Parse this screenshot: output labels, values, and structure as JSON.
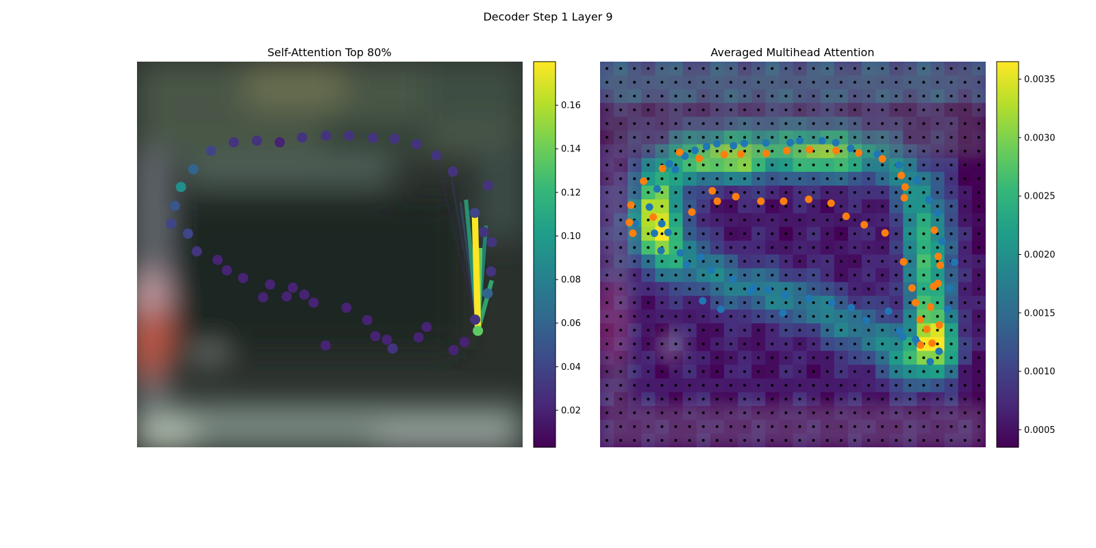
{
  "suptitle": "Decoder Step 1 Layer 9",
  "colors": {
    "viridis": [
      "#440154",
      "#482878",
      "#3e4989",
      "#31688e",
      "#26828e",
      "#1f9e89",
      "#35b779",
      "#6ece58",
      "#b5de2b",
      "#fde725"
    ],
    "query_point": "#5ec962",
    "blue_points": "#1f77b4",
    "orange_points": "#ff7f0e",
    "grid_dots": "#000000"
  },
  "chart_data": [
    {
      "type": "scatter",
      "title": "Self-Attention Top 80%",
      "background": "blurred photo of a car interior",
      "colorbar": {
        "min": 0.003,
        "max": 0.18,
        "ticks": [
          0.02,
          0.04,
          0.06,
          0.08,
          0.1,
          0.12,
          0.14,
          0.16
        ],
        "tick_labels": [
          "0.02",
          "0.04",
          "0.06",
          "0.08",
          "0.10",
          "0.12",
          "0.14",
          "0.16"
        ]
      },
      "image_extent": {
        "x": [
          0,
          1
        ],
        "y": [
          0,
          1
        ]
      },
      "query": {
        "x": 0.884,
        "y": 0.698,
        "value": 0.14
      },
      "points": [
        {
          "x": 0.663,
          "y": 0.744,
          "v": 0.03
        },
        {
          "x": 0.648,
          "y": 0.721,
          "v": 0.02
        },
        {
          "x": 0.618,
          "y": 0.712,
          "v": 0.02
        },
        {
          "x": 0.489,
          "y": 0.736,
          "v": 0.02
        },
        {
          "x": 0.73,
          "y": 0.715,
          "v": 0.02
        },
        {
          "x": 0.751,
          "y": 0.688,
          "v": 0.02
        },
        {
          "x": 0.597,
          "y": 0.67,
          "v": 0.02
        },
        {
          "x": 0.543,
          "y": 0.638,
          "v": 0.02
        },
        {
          "x": 0.388,
          "y": 0.609,
          "v": 0.02
        },
        {
          "x": 0.458,
          "y": 0.625,
          "v": 0.02
        },
        {
          "x": 0.327,
          "y": 0.611,
          "v": 0.02
        },
        {
          "x": 0.434,
          "y": 0.604,
          "v": 0.02
        },
        {
          "x": 0.877,
          "y": 0.669,
          "v": 0.03
        },
        {
          "x": 0.849,
          "y": 0.727,
          "v": 0.02
        },
        {
          "x": 0.821,
          "y": 0.748,
          "v": 0.02
        },
        {
          "x": 0.91,
          "y": 0.321,
          "v": 0.03
        },
        {
          "x": 0.899,
          "y": 0.442,
          "v": 0.03
        },
        {
          "x": 0.876,
          "y": 0.392,
          "v": 0.04
        },
        {
          "x": 0.918,
          "y": 0.544,
          "v": 0.03
        },
        {
          "x": 0.92,
          "y": 0.468,
          "v": 0.03
        },
        {
          "x": 0.909,
          "y": 0.601,
          "v": 0.06
        },
        {
          "x": 0.819,
          "y": 0.285,
          "v": 0.03
        },
        {
          "x": 0.776,
          "y": 0.243,
          "v": 0.03
        },
        {
          "x": 0.725,
          "y": 0.214,
          "v": 0.03
        },
        {
          "x": 0.668,
          "y": 0.2,
          "v": 0.03
        },
        {
          "x": 0.612,
          "y": 0.198,
          "v": 0.03
        },
        {
          "x": 0.55,
          "y": 0.192,
          "v": 0.03
        },
        {
          "x": 0.49,
          "y": 0.192,
          "v": 0.03
        },
        {
          "x": 0.428,
          "y": 0.197,
          "v": 0.03
        },
        {
          "x": 0.37,
          "y": 0.209,
          "v": 0.02
        },
        {
          "x": 0.311,
          "y": 0.205,
          "v": 0.03
        },
        {
          "x": 0.251,
          "y": 0.209,
          "v": 0.03
        },
        {
          "x": 0.192,
          "y": 0.231,
          "v": 0.04
        },
        {
          "x": 0.146,
          "y": 0.279,
          "v": 0.06
        },
        {
          "x": 0.114,
          "y": 0.325,
          "v": 0.09
        },
        {
          "x": 0.098,
          "y": 0.374,
          "v": 0.05
        },
        {
          "x": 0.089,
          "y": 0.42,
          "v": 0.04
        },
        {
          "x": 0.132,
          "y": 0.446,
          "v": 0.04
        },
        {
          "x": 0.155,
          "y": 0.492,
          "v": 0.03
        },
        {
          "x": 0.209,
          "y": 0.514,
          "v": 0.02
        },
        {
          "x": 0.233,
          "y": 0.541,
          "v": 0.02
        },
        {
          "x": 0.275,
          "y": 0.561,
          "v": 0.02
        },
        {
          "x": 0.345,
          "y": 0.578,
          "v": 0.02
        },
        {
          "x": 0.404,
          "y": 0.586,
          "v": 0.02
        }
      ],
      "attention_edges": [
        {
          "x": 0.876,
          "y": 0.392,
          "w": 0.18
        },
        {
          "x": 0.889,
          "y": 0.483,
          "w": 0.14
        },
        {
          "x": 0.853,
          "y": 0.358,
          "w": 0.11
        },
        {
          "x": 0.92,
          "y": 0.567,
          "w": 0.12
        },
        {
          "x": 0.905,
          "y": 0.425,
          "w": 0.1
        },
        {
          "x": 0.839,
          "y": 0.364,
          "w": 0.05
        },
        {
          "x": 0.813,
          "y": 0.289,
          "w": 0.03
        },
        {
          "x": 0.775,
          "y": 0.242,
          "w": 0.02
        }
      ]
    },
    {
      "type": "heatmap",
      "title": "Averaged Multihead Attention",
      "background": "blurred photo of a car interior",
      "colorbar": {
        "min": 0.00035,
        "max": 0.00365,
        "ticks": [
          0.0005,
          0.001,
          0.0015,
          0.002,
          0.0025,
          0.003,
          0.0035
        ],
        "tick_labels": [
          "0.0005",
          "0.0010",
          "0.0015",
          "0.0020",
          "0.0025",
          "0.0030",
          "0.0035"
        ]
      },
      "grid": {
        "rows": 28,
        "cols": 28
      },
      "hotspots": [
        {
          "x": 0.34,
          "y": 0.26,
          "sx": 0.09,
          "sy": 0.04,
          "a": 0.0019
        },
        {
          "x": 0.58,
          "y": 0.25,
          "sx": 0.07,
          "sy": 0.04,
          "a": 0.0017
        },
        {
          "x": 0.15,
          "y": 0.42,
          "sx": 0.05,
          "sy": 0.08,
          "a": 0.002
        },
        {
          "x": 0.87,
          "y": 0.74,
          "sx": 0.05,
          "sy": 0.06,
          "a": 0.0021
        },
        {
          "x": 0.83,
          "y": 0.52,
          "sx": 0.04,
          "sy": 0.12,
          "a": 0.001
        }
      ],
      "ring": [
        [
          0.14,
          0.4
        ],
        [
          0.16,
          0.3
        ],
        [
          0.22,
          0.24
        ],
        [
          0.34,
          0.22
        ],
        [
          0.48,
          0.21
        ],
        [
          0.62,
          0.22
        ],
        [
          0.73,
          0.25
        ],
        [
          0.82,
          0.32
        ],
        [
          0.86,
          0.45
        ],
        [
          0.87,
          0.58
        ],
        [
          0.85,
          0.72
        ],
        [
          0.8,
          0.78
        ],
        [
          0.68,
          0.7
        ],
        [
          0.52,
          0.62
        ],
        [
          0.36,
          0.58
        ],
        [
          0.22,
          0.52
        ],
        [
          0.15,
          0.45
        ]
      ],
      "blue_points": [
        {
          "x": 0.092,
          "y": 0.42
        },
        {
          "x": 0.128,
          "y": 0.377
        },
        {
          "x": 0.148,
          "y": 0.33
        },
        {
          "x": 0.141,
          "y": 0.445
        },
        {
          "x": 0.158,
          "y": 0.49
        },
        {
          "x": 0.18,
          "y": 0.265
        },
        {
          "x": 0.195,
          "y": 0.28
        },
        {
          "x": 0.22,
          "y": 0.245
        },
        {
          "x": 0.246,
          "y": 0.23
        },
        {
          "x": 0.276,
          "y": 0.22
        },
        {
          "x": 0.303,
          "y": 0.213
        },
        {
          "x": 0.346,
          "y": 0.218
        },
        {
          "x": 0.374,
          "y": 0.212
        },
        {
          "x": 0.43,
          "y": 0.211
        },
        {
          "x": 0.493,
          "y": 0.21
        },
        {
          "x": 0.518,
          "y": 0.205
        },
        {
          "x": 0.576,
          "y": 0.205
        },
        {
          "x": 0.611,
          "y": 0.21
        },
        {
          "x": 0.65,
          "y": 0.225
        },
        {
          "x": 0.673,
          "y": 0.238
        },
        {
          "x": 0.719,
          "y": 0.24
        },
        {
          "x": 0.775,
          "y": 0.268
        },
        {
          "x": 0.822,
          "y": 0.308
        },
        {
          "x": 0.853,
          "y": 0.358
        },
        {
          "x": 0.876,
          "y": 0.392
        },
        {
          "x": 0.887,
          "y": 0.466
        },
        {
          "x": 0.919,
          "y": 0.52
        },
        {
          "x": 0.906,
          "y": 0.588
        },
        {
          "x": 0.901,
          "y": 0.642
        },
        {
          "x": 0.818,
          "y": 0.72
        },
        {
          "x": 0.785,
          "y": 0.714
        },
        {
          "x": 0.776,
          "y": 0.698
        },
        {
          "x": 0.69,
          "y": 0.671
        },
        {
          "x": 0.651,
          "y": 0.638
        },
        {
          "x": 0.601,
          "y": 0.625
        },
        {
          "x": 0.542,
          "y": 0.614
        },
        {
          "x": 0.48,
          "y": 0.605
        },
        {
          "x": 0.436,
          "y": 0.592
        },
        {
          "x": 0.398,
          "y": 0.587
        },
        {
          "x": 0.344,
          "y": 0.564
        },
        {
          "x": 0.288,
          "y": 0.54
        },
        {
          "x": 0.261,
          "y": 0.507
        },
        {
          "x": 0.208,
          "y": 0.496
        },
        {
          "x": 0.176,
          "y": 0.443
        },
        {
          "x": 0.16,
          "y": 0.42
        },
        {
          "x": 0.225,
          "y": 0.526
        },
        {
          "x": 0.266,
          "y": 0.62
        },
        {
          "x": 0.313,
          "y": 0.642
        },
        {
          "x": 0.389,
          "y": 0.596
        },
        {
          "x": 0.474,
          "y": 0.652
        },
        {
          "x": 0.748,
          "y": 0.647
        },
        {
          "x": 0.879,
          "y": 0.751
        },
        {
          "x": 0.824,
          "y": 0.73
        },
        {
          "x": 0.856,
          "y": 0.778
        }
      ],
      "orange_points": [
        {
          "x": 0.076,
          "y": 0.417
        },
        {
          "x": 0.08,
          "y": 0.372
        },
        {
          "x": 0.085,
          "y": 0.445
        },
        {
          "x": 0.113,
          "y": 0.31
        },
        {
          "x": 0.138,
          "y": 0.403
        },
        {
          "x": 0.162,
          "y": 0.277
        },
        {
          "x": 0.206,
          "y": 0.235
        },
        {
          "x": 0.238,
          "y": 0.39
        },
        {
          "x": 0.257,
          "y": 0.251
        },
        {
          "x": 0.291,
          "y": 0.335
        },
        {
          "x": 0.304,
          "y": 0.362
        },
        {
          "x": 0.322,
          "y": 0.241
        },
        {
          "x": 0.352,
          "y": 0.35
        },
        {
          "x": 0.365,
          "y": 0.24
        },
        {
          "x": 0.417,
          "y": 0.362
        },
        {
          "x": 0.431,
          "y": 0.238
        },
        {
          "x": 0.476,
          "y": 0.362
        },
        {
          "x": 0.484,
          "y": 0.231
        },
        {
          "x": 0.541,
          "y": 0.357
        },
        {
          "x": 0.543,
          "y": 0.228
        },
        {
          "x": 0.599,
          "y": 0.367
        },
        {
          "x": 0.612,
          "y": 0.231
        },
        {
          "x": 0.638,
          "y": 0.401
        },
        {
          "x": 0.671,
          "y": 0.237
        },
        {
          "x": 0.685,
          "y": 0.423
        },
        {
          "x": 0.732,
          "y": 0.252
        },
        {
          "x": 0.739,
          "y": 0.444
        },
        {
          "x": 0.781,
          "y": 0.295
        },
        {
          "x": 0.787,
          "y": 0.519
        },
        {
          "x": 0.789,
          "y": 0.353
        },
        {
          "x": 0.791,
          "y": 0.325
        },
        {
          "x": 0.809,
          "y": 0.587
        },
        {
          "x": 0.818,
          "y": 0.625
        },
        {
          "x": 0.83,
          "y": 0.669
        },
        {
          "x": 0.831,
          "y": 0.735
        },
        {
          "x": 0.847,
          "y": 0.694
        },
        {
          "x": 0.857,
          "y": 0.636
        },
        {
          "x": 0.865,
          "y": 0.583
        },
        {
          "x": 0.876,
          "y": 0.575
        },
        {
          "x": 0.882,
          "y": 0.528
        },
        {
          "x": 0.877,
          "y": 0.505
        },
        {
          "x": 0.861,
          "y": 0.73
        },
        {
          "x": 0.88,
          "y": 0.683
        },
        {
          "x": 0.867,
          "y": 0.437
        }
      ]
    }
  ]
}
